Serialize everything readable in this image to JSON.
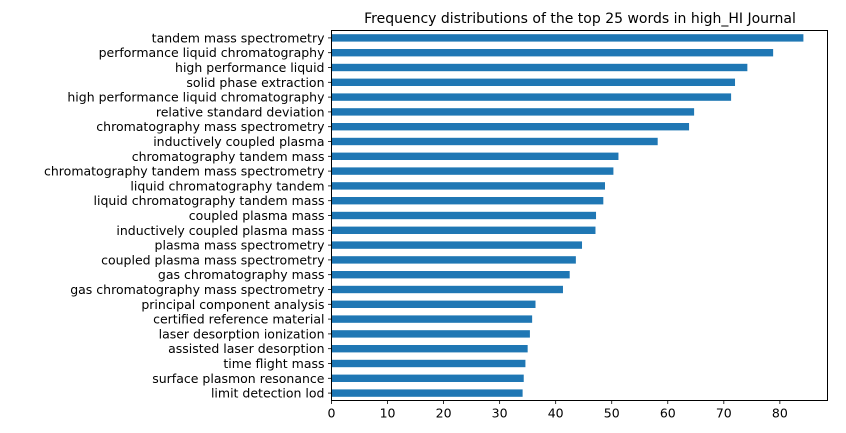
{
  "chart_data": {
    "type": "bar",
    "orientation": "horizontal",
    "title": "Frequency distributions of the top 25 words in high_HI Journal",
    "xlabel": "",
    "ylabel": "",
    "xlim": [
      0,
      88.5
    ],
    "xticks": [
      0,
      10,
      20,
      30,
      40,
      50,
      60,
      70,
      80
    ],
    "grid": false,
    "bar_color": "#1f77b4",
    "categories": [
      "tandem mass spectrometry",
      "performance liquid chromatography",
      "high performance liquid",
      "solid phase extraction",
      "high performance liquid chromatography",
      "relative standard deviation",
      "chromatography mass spectrometry",
      "inductively coupled plasma",
      "chromatography tandem mass",
      "chromatography tandem mass spectrometry",
      "liquid chromatography tandem",
      "liquid chromatography tandem mass",
      "coupled plasma mass",
      "inductively coupled plasma mass",
      "plasma mass spectrometry",
      "coupled plasma mass spectrometry",
      "gas chromatography mass",
      "gas chromatography mass spectrometry",
      "principal component analysis",
      "certified reference material",
      "laser desorption ionization",
      "assisted laser desorption",
      "time flight mass",
      "surface plasmon resonance",
      "limit detection lod"
    ],
    "values": [
      84.2,
      78.8,
      74.2,
      72.0,
      71.3,
      64.7,
      63.8,
      58.2,
      51.2,
      50.3,
      48.8,
      48.5,
      47.2,
      47.1,
      44.7,
      43.6,
      42.5,
      41.3,
      36.4,
      35.8,
      35.4,
      35.0,
      34.6,
      34.3,
      34.1
    ]
  }
}
